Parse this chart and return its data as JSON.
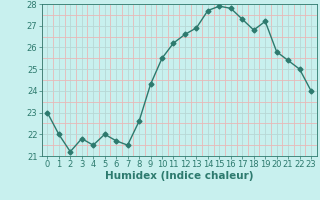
{
  "x": [
    0,
    1,
    2,
    3,
    4,
    5,
    6,
    7,
    8,
    9,
    10,
    11,
    12,
    13,
    14,
    15,
    16,
    17,
    18,
    19,
    20,
    21,
    22,
    23
  ],
  "y": [
    23.0,
    22.0,
    21.2,
    21.8,
    21.5,
    22.0,
    21.7,
    21.5,
    22.6,
    24.3,
    25.5,
    26.2,
    26.6,
    26.9,
    27.7,
    27.9,
    27.8,
    27.3,
    26.8,
    27.2,
    25.8,
    25.4,
    25.0,
    24.0
  ],
  "line_color": "#2d7a6e",
  "bg_color": "#c8f0ee",
  "major_grid_color": "#b8d8d5",
  "minor_grid_color": "#e8b8b8",
  "axis_color": "#2d7a6e",
  "xlabel": "Humidex (Indice chaleur)",
  "ylim": [
    21,
    28
  ],
  "yticks": [
    21,
    22,
    23,
    24,
    25,
    26,
    27,
    28
  ],
  "xtick_labels": [
    "0",
    "1",
    "2",
    "3",
    "4",
    "5",
    "6",
    "7",
    "8",
    "9",
    "10",
    "11",
    "12",
    "13",
    "14",
    "15",
    "16",
    "17",
    "18",
    "19",
    "20",
    "21",
    "22",
    "23"
  ],
  "xlabel_fontsize": 7.5,
  "tick_fontsize": 6,
  "marker": "D",
  "marker_size": 2.5,
  "line_width": 1.0
}
